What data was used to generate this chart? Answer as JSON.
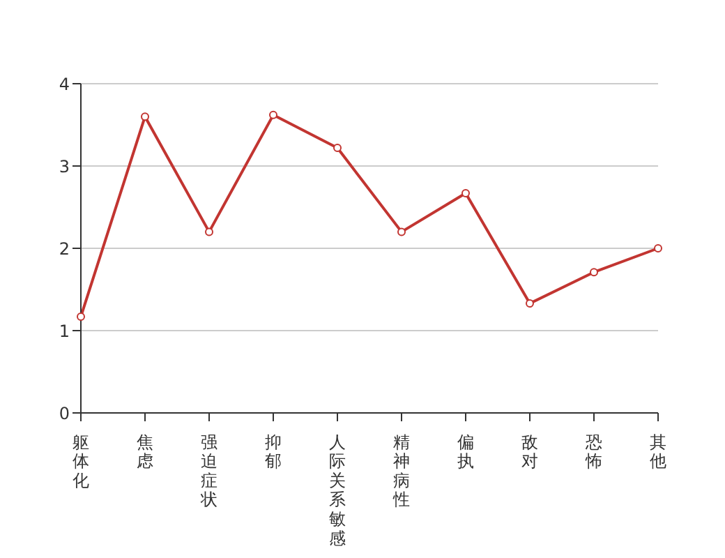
{
  "chart_data": {
    "type": "line",
    "categories": [
      "躯体化",
      "焦虑",
      "强迫症状",
      "抑郁",
      "人际关系敏感",
      "精神病性",
      "偏执",
      "敌对",
      "恐怖",
      "其他"
    ],
    "series": [
      {
        "color": "#c23531",
        "values": [
          1.17,
          3.6,
          2.2,
          3.62,
          3.22,
          2.2,
          2.67,
          1.33,
          1.71,
          2.0
        ]
      }
    ],
    "ylim": [
      0,
      4
    ],
    "yticks": [
      0,
      1,
      2,
      3,
      4
    ],
    "grid": "y",
    "marker": "circle",
    "line_style": "solid",
    "legend": false
  }
}
